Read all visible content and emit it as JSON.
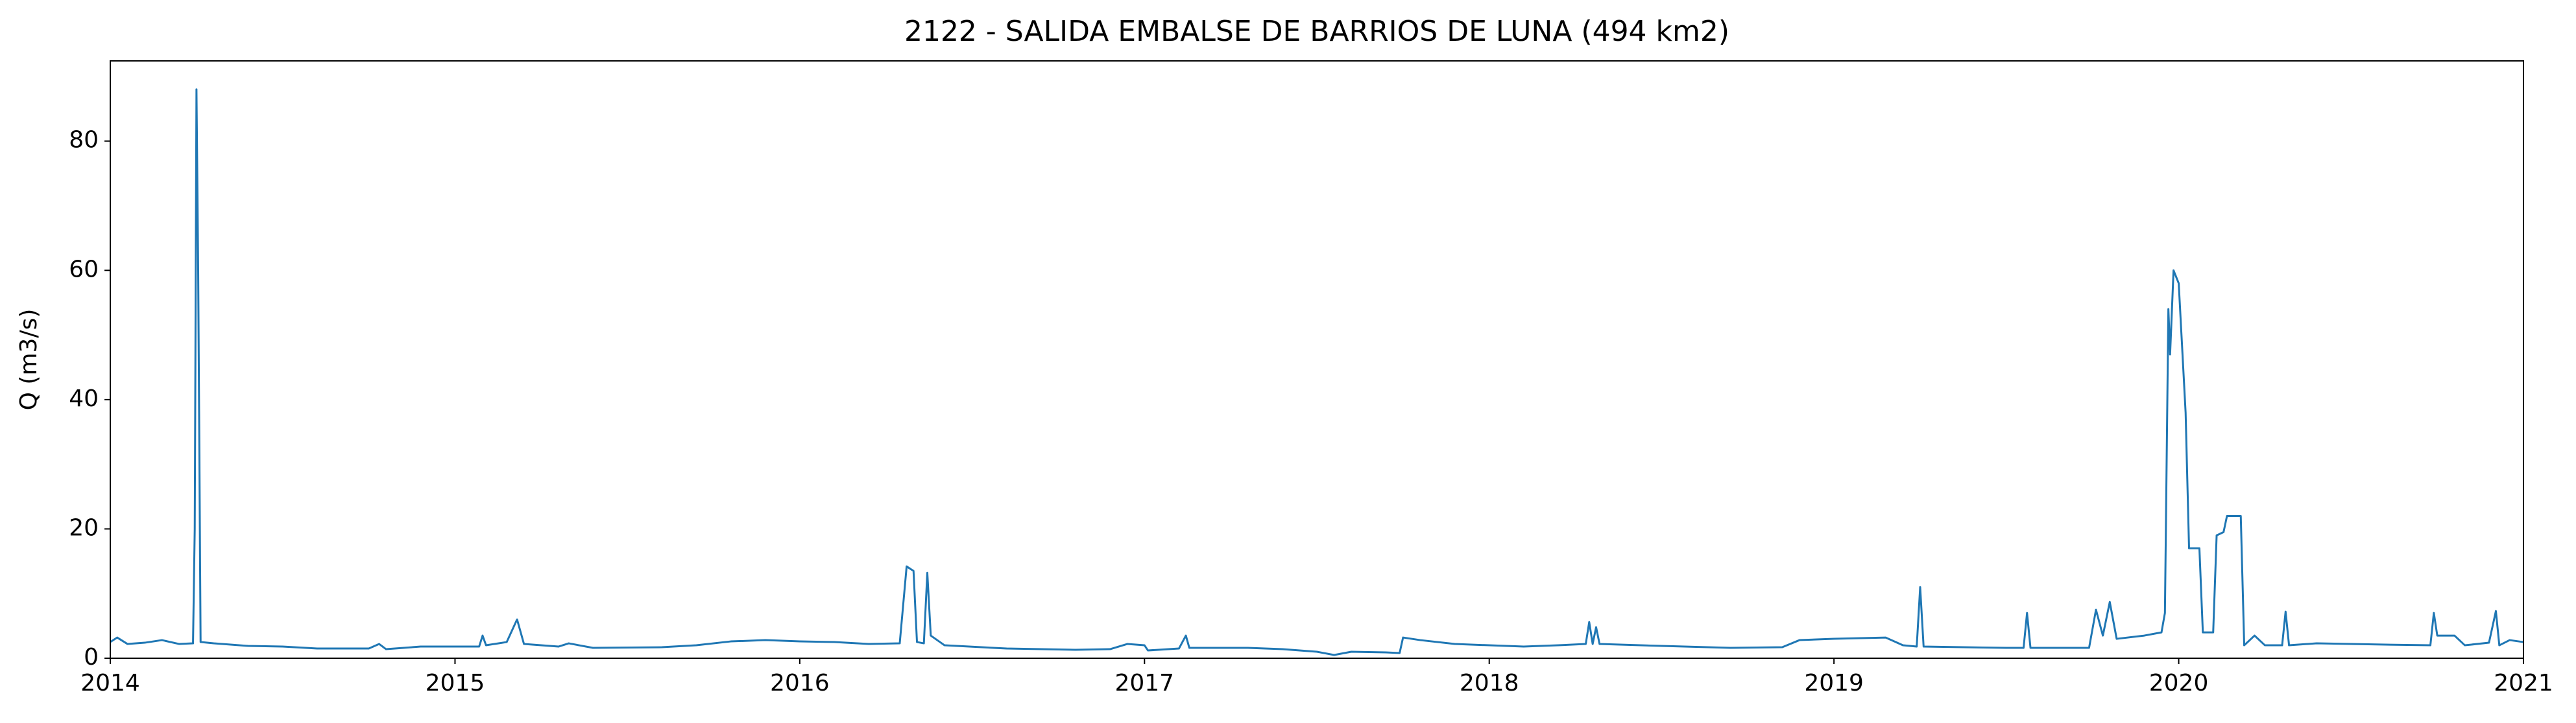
{
  "chart_data": {
    "type": "line",
    "title": "2122 - SALIDA EMBALSE DE BARRIOS DE LUNA (494 km2)",
    "ylabel": "Q (m3/s)",
    "color": "#1f77b4",
    "x": [
      2014.0,
      2014.02,
      2014.05,
      2014.1,
      2014.15,
      2014.2,
      2014.24,
      2014.245,
      2014.25,
      2014.255,
      2014.262,
      2014.3,
      2014.4,
      2014.5,
      2014.6,
      2014.75,
      2014.78,
      2014.8,
      2014.9,
      2015.0,
      2015.07,
      2015.08,
      2015.09,
      2015.15,
      2015.18,
      2015.2,
      2015.3,
      2015.33,
      2015.4,
      2015.6,
      2015.7,
      2015.8,
      2015.9,
      2016.0,
      2016.1,
      2016.2,
      2016.29,
      2016.31,
      2016.33,
      2016.34,
      2016.36,
      2016.37,
      2016.38,
      2016.42,
      2016.6,
      2016.8,
      2016.9,
      2016.95,
      2017.0,
      2017.01,
      2017.1,
      2017.12,
      2017.13,
      2017.3,
      2017.4,
      2017.5,
      2017.55,
      2017.6,
      2017.7,
      2017.74,
      2017.75,
      2017.8,
      2017.9,
      2018.0,
      2018.1,
      2018.2,
      2018.28,
      2018.29,
      2018.3,
      2018.31,
      2018.32,
      2018.5,
      2018.7,
      2018.85,
      2018.9,
      2019.0,
      2019.15,
      2019.2,
      2019.24,
      2019.25,
      2019.26,
      2019.5,
      2019.55,
      2019.56,
      2019.57,
      2019.74,
      2019.76,
      2019.78,
      2019.8,
      2019.82,
      2019.9,
      2019.95,
      2019.96,
      2019.97,
      2019.975,
      2019.985,
      2020.0,
      2020.02,
      2020.03,
      2020.06,
      2020.07,
      2020.1,
      2020.11,
      2020.13,
      2020.14,
      2020.18,
      2020.19,
      2020.22,
      2020.25,
      2020.3,
      2020.31,
      2020.32,
      2020.4,
      2020.6,
      2020.73,
      2020.74,
      2020.75,
      2020.8,
      2020.83,
      2020.9,
      2020.92,
      2020.93,
      2020.96,
      2021.0
    ],
    "values": [
      2.5,
      3.2,
      2.2,
      2.4,
      2.8,
      2.2,
      2.3,
      20,
      88,
      60,
      2.5,
      2.3,
      1.9,
      1.8,
      1.5,
      1.5,
      2.2,
      1.4,
      1.8,
      1.8,
      1.8,
      3.5,
      2.0,
      2.5,
      6.0,
      2.2,
      1.8,
      2.3,
      1.6,
      1.7,
      2.0,
      2.6,
      2.8,
      2.6,
      2.5,
      2.2,
      2.3,
      14.2,
      13.5,
      2.5,
      2.3,
      13.2,
      3.5,
      2.0,
      1.5,
      1.3,
      1.4,
      2.2,
      2.0,
      1.2,
      1.5,
      3.5,
      1.6,
      1.6,
      1.4,
      1.0,
      0.5,
      1.0,
      0.9,
      0.8,
      3.2,
      2.8,
      2.2,
      2.0,
      1.8,
      2.0,
      2.2,
      5.6,
      2.2,
      4.8,
      2.2,
      1.9,
      1.6,
      1.7,
      2.8,
      3.0,
      3.2,
      2.0,
      1.8,
      11,
      1.8,
      1.6,
      1.6,
      7.0,
      1.6,
      1.6,
      7.5,
      3.5,
      8.7,
      3.0,
      3.5,
      4.0,
      7.0,
      54,
      47,
      60,
      58,
      38,
      17,
      17,
      4,
      4,
      19,
      19.5,
      22,
      22,
      2.0,
      3.5,
      2.0,
      2.0,
      7.2,
      2.0,
      2.3,
      2.1,
      2.0,
      7.0,
      3.5,
      3.5,
      2.0,
      2.4,
      7.3,
      2.0,
      2.8,
      2.5
    ],
    "xlim": [
      2014,
      2021
    ],
    "xticks": [
      2014,
      2015,
      2016,
      2017,
      2018,
      2019,
      2020,
      2021
    ],
    "ylim": [
      0,
      92.4
    ],
    "yticks": [
      0,
      20,
      40,
      60,
      80
    ]
  }
}
